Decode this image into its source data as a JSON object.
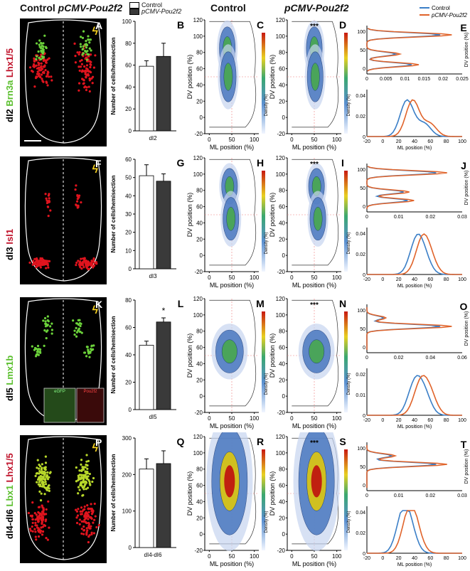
{
  "header": {
    "control_plain": "Control",
    "control_italic": "pCMV-Pou2f2",
    "col_control": "Control",
    "col_pou": "pCMV-Pou2f2"
  },
  "bar_legend": [
    "Control",
    "pCMV-Pou2f2"
  ],
  "kde_legend": [
    "Control",
    "pCMV-Pou2f2"
  ],
  "colors": {
    "control": "#3b7fc7",
    "pou": "#e0632a",
    "red_signal": "#e0141e",
    "green_signal": "#6bd13a",
    "bar_dark": "#3a3a3a"
  },
  "rows": [
    {
      "label_parts": [
        {
          "text": "dI2 ",
          "color": "#000"
        },
        {
          "text": "Brn3a ",
          "color": "#5bbf2e"
        },
        {
          "text": "Lhx1/5",
          "color": "#c0142c"
        }
      ],
      "letters": [
        "A",
        "B",
        "C",
        "D",
        "E"
      ],
      "bar": {
        "ymax": 100,
        "ticks": [
          "0",
          "20",
          "40",
          "60",
          "80",
          "100"
        ],
        "values": [
          59,
          68
        ],
        "err": [
          5,
          12
        ],
        "xlabel": "dI2",
        "ylabel": "Number of cells/hemisection",
        "sig": ""
      },
      "sig_scatter": "***",
      "kde_dv": {
        "xticks": [
          "0",
          "0.005",
          "0.01",
          "0.015",
          "0.02",
          "0.025"
        ],
        "yticks": [
          "0",
          "50",
          "100"
        ],
        "ylabel": "DV position (%)"
      },
      "kde_ml": {
        "xticks": [
          "-20",
          "0",
          "20",
          "40",
          "60",
          "80",
          "100"
        ],
        "yticks": [
          "0",
          "0.02",
          "0.04"
        ],
        "xlabel": "ML position (%)"
      }
    },
    {
      "label_parts": [
        {
          "text": "dI3 ",
          "color": "#000"
        },
        {
          "text": "Isl1",
          "color": "#c0142c"
        }
      ],
      "letters": [
        "F",
        "G",
        "H",
        "I",
        "J"
      ],
      "bar": {
        "ymax": 60,
        "ticks": [
          "0",
          "10",
          "20",
          "30",
          "40",
          "50",
          "60"
        ],
        "values": [
          51,
          48
        ],
        "err": [
          6,
          4
        ],
        "xlabel": "dI3",
        "ylabel": "Number of cells/hemisection",
        "sig": ""
      },
      "sig_scatter": "***",
      "kde_dv": {
        "xticks": [
          "0",
          "0.01",
          "0.02",
          "0.03"
        ],
        "yticks": [
          "0",
          "50",
          "100"
        ],
        "ylabel": "DV position (%)"
      },
      "kde_ml": {
        "xticks": [
          "-20",
          "0",
          "20",
          "40",
          "60",
          "80",
          "100"
        ],
        "yticks": [
          "0",
          "0.02",
          "0.04"
        ],
        "xlabel": "ML position (%)"
      }
    },
    {
      "label_parts": [
        {
          "text": "dI5 ",
          "color": "#000"
        },
        {
          "text": "Lmx1b",
          "color": "#5bbf2e"
        }
      ],
      "letters": [
        "K",
        "L",
        "M",
        "N",
        "O"
      ],
      "bar": {
        "ymax": 80,
        "ticks": [
          "0",
          "20",
          "40",
          "60",
          "80"
        ],
        "values": [
          47,
          64
        ],
        "err": [
          3,
          3
        ],
        "xlabel": "dI5",
        "ylabel": "Number of cells/hemisection",
        "sig": "*"
      },
      "sig_scatter": "***",
      "inset": [
        "eGFP",
        "Pou2f2"
      ],
      "kde_dv": {
        "xticks": [
          "0",
          "0.02",
          "0.04",
          "0.06"
        ],
        "yticks": [
          "0",
          "50",
          "100"
        ],
        "ylabel": "DV position (%)"
      },
      "kde_ml": {
        "xticks": [
          "-20",
          "0",
          "20",
          "40",
          "60",
          "80",
          "100"
        ],
        "yticks": [
          "0",
          "0.01",
          "0.02"
        ],
        "xlabel": "ML position (%)"
      }
    },
    {
      "label_parts": [
        {
          "text": "dI4-dI6 ",
          "color": "#000"
        },
        {
          "text": "Lbx1 ",
          "color": "#5bbf2e"
        },
        {
          "text": "Lhx1/5",
          "color": "#c0142c"
        }
      ],
      "letters": [
        "P",
        "Q",
        "R",
        "S",
        "T"
      ],
      "bar": {
        "ymax": 300,
        "ticks": [
          "0",
          "100",
          "200",
          "300"
        ],
        "values": [
          215,
          230
        ],
        "err": [
          28,
          35
        ],
        "xlabel": "dI4-dI6",
        "ylabel": "Number of cells/hemisection",
        "sig": ""
      },
      "sig_scatter": "***",
      "kde_dv": {
        "xticks": [
          "0",
          "0.01",
          "0.02",
          "0.03"
        ],
        "yticks": [
          "0",
          "50",
          "100"
        ],
        "ylabel": "DV position (%)"
      },
      "kde_ml": {
        "xticks": [
          "-20",
          "0",
          "20",
          "40",
          "60",
          "80",
          "100"
        ],
        "yticks": [
          "0",
          "0.02",
          "0.04"
        ],
        "xlabel": "ML position (%)"
      }
    }
  ],
  "scatter_axes": {
    "xticks": [
      "0",
      "50",
      "100"
    ],
    "yticks": [
      "-20",
      "0",
      "20",
      "40",
      "60",
      "80",
      "100",
      "120"
    ],
    "xlabel": "ML position (%)",
    "ylabel": "DV position (%)"
  }
}
